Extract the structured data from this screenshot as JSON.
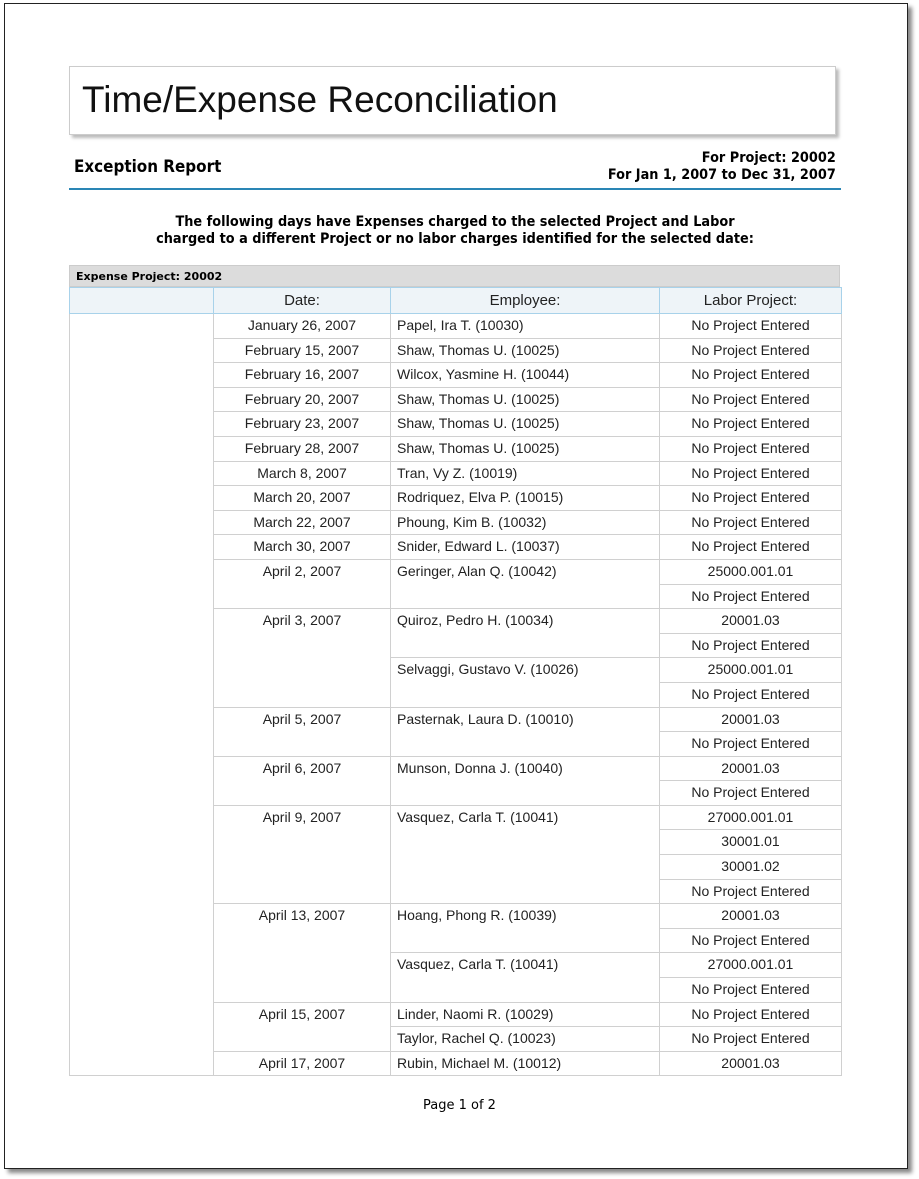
{
  "title": "Time/Expense Reconciliation",
  "subtitle": "Exception Report",
  "project_line": "For Project: 20002",
  "date_range": "For Jan 1, 2007 to Dec 31, 2007",
  "intro_line1": "The following days have Expenses charged to the selected Project and Labor",
  "intro_line2": "charged to a different Project or no labor charges identified for the selected date:",
  "group_label": "Expense Project: 20002",
  "columns": [
    "",
    "Date:",
    "Employee:",
    "Labor Project:"
  ],
  "rows": [
    {
      "date": "January 26, 2007",
      "employees": [
        {
          "name": "Papel, Ira T. (10030)",
          "projects": [
            "No Project Entered"
          ]
        }
      ]
    },
    {
      "date": "February 15, 2007",
      "employees": [
        {
          "name": "Shaw, Thomas U. (10025)",
          "projects": [
            "No Project Entered"
          ]
        }
      ]
    },
    {
      "date": "February 16, 2007",
      "employees": [
        {
          "name": "Wilcox, Yasmine H. (10044)",
          "projects": [
            "No Project Entered"
          ]
        }
      ]
    },
    {
      "date": "February 20, 2007",
      "employees": [
        {
          "name": "Shaw, Thomas U. (10025)",
          "projects": [
            "No Project Entered"
          ]
        }
      ]
    },
    {
      "date": "February 23, 2007",
      "employees": [
        {
          "name": "Shaw, Thomas U. (10025)",
          "projects": [
            "No Project Entered"
          ]
        }
      ]
    },
    {
      "date": "February 28, 2007",
      "employees": [
        {
          "name": "Shaw, Thomas U. (10025)",
          "projects": [
            "No Project Entered"
          ]
        }
      ]
    },
    {
      "date": "March 8, 2007",
      "employees": [
        {
          "name": "Tran, Vy Z. (10019)",
          "projects": [
            "No Project Entered"
          ]
        }
      ]
    },
    {
      "date": "March 20, 2007",
      "employees": [
        {
          "name": "Rodriquez, Elva P. (10015)",
          "projects": [
            "No Project Entered"
          ]
        }
      ]
    },
    {
      "date": "March 22, 2007",
      "employees": [
        {
          "name": "Phoung, Kim B. (10032)",
          "projects": [
            "No Project Entered"
          ]
        }
      ]
    },
    {
      "date": "March 30, 2007",
      "employees": [
        {
          "name": "Snider, Edward L. (10037)",
          "projects": [
            "No Project Entered"
          ]
        }
      ]
    },
    {
      "date": "April 2, 2007",
      "employees": [
        {
          "name": "Geringer, Alan Q. (10042)",
          "projects": [
            "25000.001.01",
            "No Project Entered"
          ]
        }
      ]
    },
    {
      "date": "April 3, 2007",
      "employees": [
        {
          "name": "Quiroz, Pedro H. (10034)",
          "projects": [
            "20001.03",
            "No Project Entered"
          ]
        },
        {
          "name": "Selvaggi, Gustavo V. (10026)",
          "projects": [
            "25000.001.01",
            "No Project Entered"
          ]
        }
      ]
    },
    {
      "date": "April 5, 2007",
      "employees": [
        {
          "name": "Pasternak, Laura D. (10010)",
          "projects": [
            "20001.03",
            "No Project Entered"
          ]
        }
      ]
    },
    {
      "date": "April 6, 2007",
      "employees": [
        {
          "name": "Munson, Donna J. (10040)",
          "projects": [
            "20001.03",
            "No Project Entered"
          ]
        }
      ]
    },
    {
      "date": "April 9, 2007",
      "employees": [
        {
          "name": "Vasquez, Carla T. (10041)",
          "projects": [
            "27000.001.01",
            "30001.01",
            "30001.02",
            "No Project Entered"
          ]
        }
      ]
    },
    {
      "date": "April 13, 2007",
      "employees": [
        {
          "name": "Hoang, Phong R. (10039)",
          "projects": [
            "20001.03",
            "No Project Entered"
          ]
        },
        {
          "name": "Vasquez, Carla T. (10041)",
          "projects": [
            "27000.001.01",
            "No Project Entered"
          ]
        }
      ]
    },
    {
      "date": "April 15, 2007",
      "employees": [
        {
          "name": "Linder, Naomi R. (10029)",
          "projects": [
            "No Project Entered"
          ]
        },
        {
          "name": "Taylor, Rachel Q. (10023)",
          "projects": [
            "No Project Entered"
          ]
        }
      ]
    },
    {
      "date": "April 17, 2007",
      "employees": [
        {
          "name": "Rubin, Michael M. (10012)",
          "projects": [
            "20001.03"
          ]
        }
      ]
    }
  ],
  "footer": "Page 1 of 2"
}
